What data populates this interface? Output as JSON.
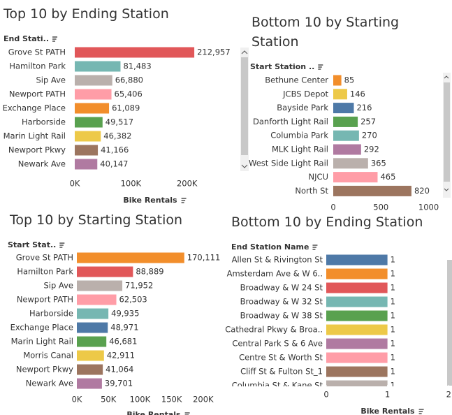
{
  "chart_data": [
    {
      "type": "bar",
      "title": "Top 10 by Ending Station",
      "y_label": "End Stati..",
      "x_label": "Bike Rentals",
      "categories": [
        "Grove St PATH",
        "Hamilton Park",
        "Sip Ave",
        "Newport PATH",
        "Exchange Place",
        "Harborside",
        "Marin Light Rail",
        "Newport Pkwy",
        "Newark Ave"
      ],
      "values": [
        212957,
        81483,
        66880,
        65406,
        61089,
        49517,
        46382,
        41166,
        40147
      ],
      "value_labels": [
        "212,957",
        "81,483",
        "66,880",
        "65,406",
        "61,089",
        "49,517",
        "46,382",
        "41,166",
        "40,147"
      ],
      "colors": [
        "#e15759",
        "#76b7b2",
        "#bab0ac",
        "#ff9da7",
        "#f28e2b",
        "#59a14f",
        "#edc948",
        "#9c755f",
        "#b07aa1"
      ],
      "xlim": [
        0,
        290000
      ],
      "xticks": [
        {
          "value": 0,
          "label": "0K"
        },
        {
          "value": 100000,
          "label": "100K"
        },
        {
          "value": 200000,
          "label": "200K"
        }
      ]
    },
    {
      "type": "bar",
      "title": "Bottom 10 by Starting Station",
      "y_label": "Start Station ..",
      "categories": [
        "Bethune Center",
        "JCBS Depot",
        "Bayside Park",
        "Danforth Light Rail",
        "Columbia Park",
        "MLK Light Rail",
        "West Side Light Rail",
        "NJCU",
        "North St"
      ],
      "values": [
        85,
        146,
        216,
        257,
        270,
        292,
        365,
        465,
        820
      ],
      "colors": [
        "#f28e2b",
        "#edc948",
        "#4e79a7",
        "#59a14f",
        "#76b7b2",
        "#b07aa1",
        "#bab0ac",
        "#ff9da7",
        "#9c755f"
      ],
      "xlim": [
        0,
        1150
      ],
      "xticks": [
        0,
        500,
        1000
      ]
    },
    {
      "type": "bar",
      "title": "Top 10 by Starting Station",
      "y_label": "Start Stat..",
      "x_label": "Bike Rentals",
      "categories": [
        "Grove St PATH",
        "Hamilton Park",
        "Sip Ave",
        "Newport PATH",
        "Harborside",
        "Exchange Place",
        "Marin Light Rail",
        "Morris Canal",
        "Newport Pkwy",
        "Newark Ave"
      ],
      "values": [
        170111,
        88889,
        71952,
        62503,
        49935,
        48971,
        46681,
        42911,
        41064,
        39701
      ],
      "value_labels": [
        "170,111",
        "88,889",
        "71,952",
        "62,503",
        "49,935",
        "48,971",
        "46,681",
        "42,911",
        "41,064",
        "39,701"
      ],
      "colors": [
        "#f28e2b",
        "#e15759",
        "#bab0ac",
        "#ff9da7",
        "#76b7b2",
        "#4e79a7",
        "#59a14f",
        "#edc948",
        "#9c755f",
        "#b07aa1"
      ],
      "xlim": [
        0,
        240000
      ],
      "xticks": [
        {
          "value": 0,
          "label": "0K"
        },
        {
          "value": 50000,
          "label": "50K"
        },
        {
          "value": 100000,
          "label": "100K"
        },
        {
          "value": 150000,
          "label": "150K"
        },
        {
          "value": 200000,
          "label": "200K"
        }
      ]
    },
    {
      "type": "bar",
      "title": "Bottom 10 by Ending Station",
      "y_label": "End Station Name",
      "x_label": "Bike Rentals",
      "categories": [
        "Allen St & Rivington St",
        "Amsterdam Ave & W 6..",
        "Broadway & W 24 St",
        "Broadway & W 32 St",
        "Broadway & W 38 St",
        "Cathedral Pkwy & Broa..",
        "Central Park S & 6 Ave",
        "Centre St & Worth St",
        "Cliff St & Fulton St_1",
        "Columbia St & Kane St"
      ],
      "values": [
        1,
        1,
        1,
        1,
        1,
        1,
        1,
        1,
        1,
        1
      ],
      "colors": [
        "#4e79a7",
        "#f28e2b",
        "#e15759",
        "#76b7b2",
        "#59a14f",
        "#edc948",
        "#b07aa1",
        "#ff9da7",
        "#9c755f",
        "#bab0ac"
      ],
      "xlim": [
        0,
        2.1
      ],
      "xticks": [
        0,
        1,
        2
      ]
    }
  ]
}
